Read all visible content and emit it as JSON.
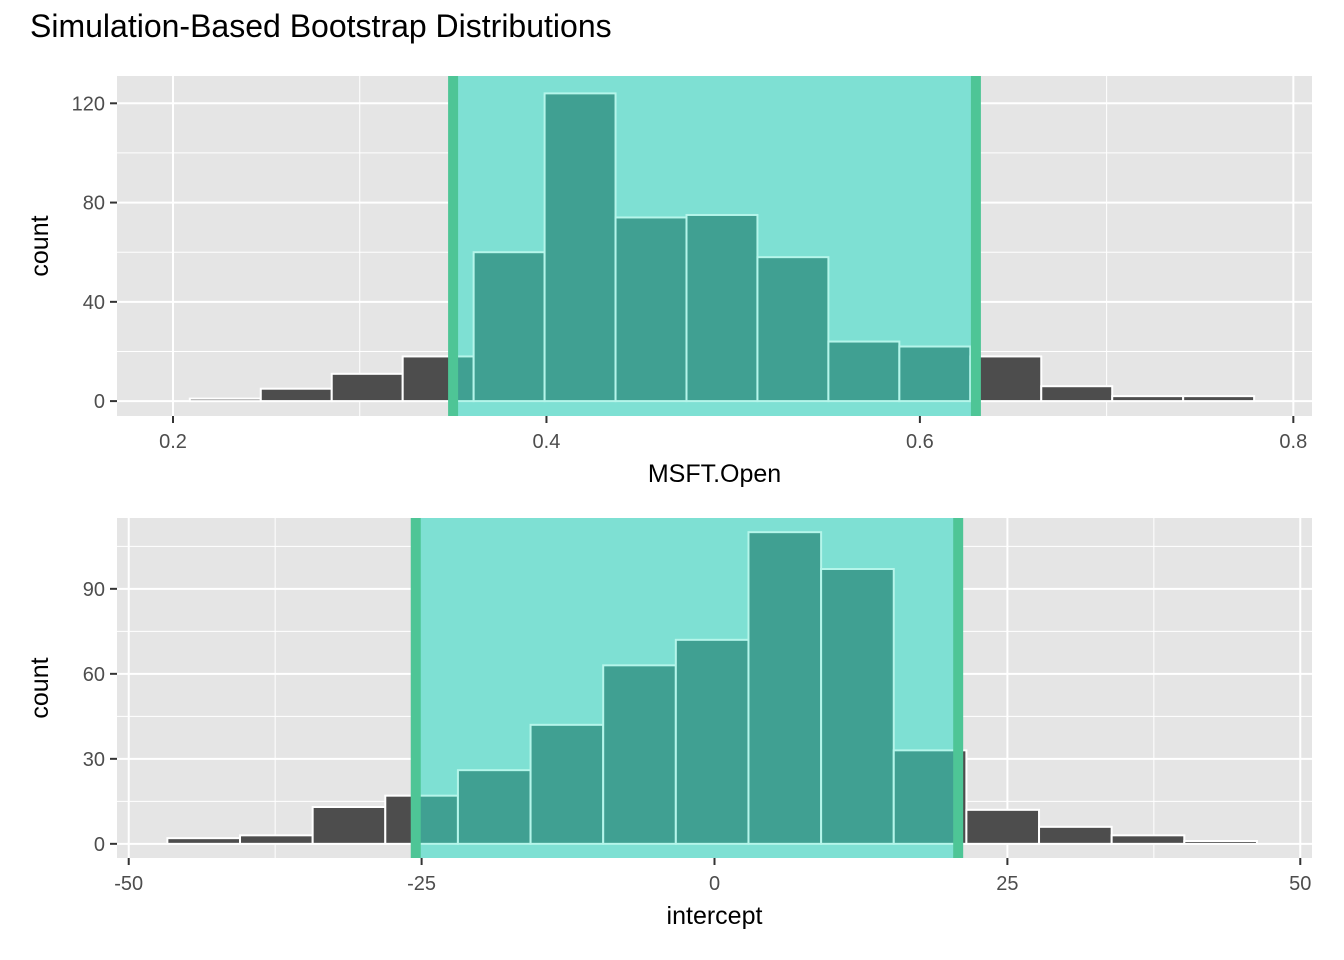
{
  "title": "Simulation-Based Bootstrap Distributions",
  "colors": {
    "panel_bg": "#e5e5e5",
    "grid": "#ffffff",
    "bar_fill": "#4d4d4d",
    "bar_stroke": "#ffffff",
    "ci_fill": "#7ee0d3",
    "ci_line": "#4ec596",
    "bar_in_ci": "#40a092",
    "bar_in_ci_stroke": "#b5f5ea",
    "tick_label": "#4d4d4d",
    "axis_title": "#000000"
  },
  "chart_data": [
    {
      "type": "histogram",
      "xlabel": "MSFT.Open",
      "ylabel": "count",
      "xlim": [
        0.17,
        0.81
      ],
      "ylim": [
        -6,
        131
      ],
      "xticks": [
        0.2,
        0.4,
        0.6,
        0.8
      ],
      "xtick_labels": [
        "0.2",
        "0.4",
        "0.6",
        "0.8"
      ],
      "yticks": [
        0,
        40,
        80,
        120
      ],
      "ytick_labels": [
        "0",
        "40",
        "80",
        "120"
      ],
      "grid": true,
      "ci": [
        0.35,
        0.63
      ],
      "bins": [
        {
          "start": 0.209,
          "end": 0.247,
          "count": 1
        },
        {
          "start": 0.247,
          "end": 0.285,
          "count": 5
        },
        {
          "start": 0.285,
          "end": 0.323,
          "count": 11
        },
        {
          "start": 0.323,
          "end": 0.361,
          "count": 18
        },
        {
          "start": 0.361,
          "end": 0.399,
          "count": 60
        },
        {
          "start": 0.399,
          "end": 0.437,
          "count": 124
        },
        {
          "start": 0.437,
          "end": 0.475,
          "count": 74
        },
        {
          "start": 0.475,
          "end": 0.513,
          "count": 75
        },
        {
          "start": 0.513,
          "end": 0.551,
          "count": 58
        },
        {
          "start": 0.551,
          "end": 0.589,
          "count": 24
        },
        {
          "start": 0.589,
          "end": 0.627,
          "count": 22
        },
        {
          "start": 0.627,
          "end": 0.665,
          "count": 18
        },
        {
          "start": 0.665,
          "end": 0.703,
          "count": 6
        },
        {
          "start": 0.703,
          "end": 0.741,
          "count": 2
        },
        {
          "start": 0.741,
          "end": 0.779,
          "count": 2
        }
      ]
    },
    {
      "type": "histogram",
      "xlabel": "intercept",
      "ylabel": "count",
      "xlim": [
        -51,
        51
      ],
      "ylim": [
        -5,
        115
      ],
      "xticks": [
        -50,
        -25,
        0,
        25,
        50
      ],
      "xtick_labels": [
        "-50",
        "-25",
        "0",
        "25",
        "50"
      ],
      "yticks": [
        0,
        30,
        60,
        90
      ],
      "ytick_labels": [
        "0",
        "30",
        "60",
        "90"
      ],
      "grid": true,
      "ci": [
        -25.5,
        20.8
      ],
      "bins": [
        {
          "start": -46.7,
          "end": -40.5,
          "count": 2
        },
        {
          "start": -40.5,
          "end": -34.3,
          "count": 3
        },
        {
          "start": -34.3,
          "end": -28.1,
          "count": 13
        },
        {
          "start": -28.1,
          "end": -21.9,
          "count": 17
        },
        {
          "start": -21.9,
          "end": -15.7,
          "count": 26
        },
        {
          "start": -15.7,
          "end": -9.5,
          "count": 42
        },
        {
          "start": -9.5,
          "end": -3.3,
          "count": 63
        },
        {
          "start": -3.3,
          "end": 2.9,
          "count": 72
        },
        {
          "start": 2.9,
          "end": 9.1,
          "count": 110
        },
        {
          "start": 9.1,
          "end": 15.3,
          "count": 97
        },
        {
          "start": 15.3,
          "end": 21.5,
          "count": 33
        },
        {
          "start": 21.5,
          "end": 27.7,
          "count": 12
        },
        {
          "start": 27.7,
          "end": 33.9,
          "count": 6
        },
        {
          "start": 33.9,
          "end": 40.1,
          "count": 3
        },
        {
          "start": 40.1,
          "end": 46.3,
          "count": 1
        }
      ]
    }
  ]
}
